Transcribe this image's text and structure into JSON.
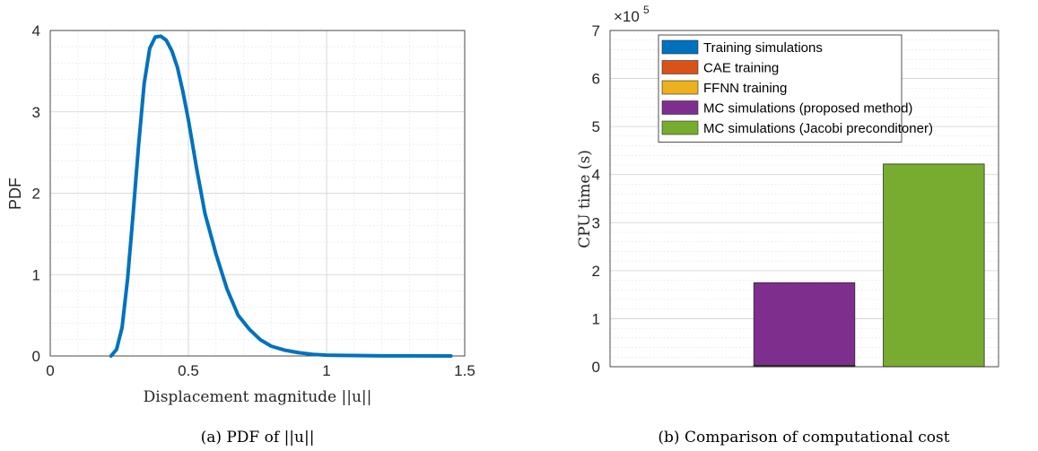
{
  "chart_data": [
    {
      "type": "line",
      "xlabel": "Displacement magnitude ||u||",
      "ylabel": "PDF",
      "caption": "(a) PDF of ||u||",
      "xlim": [
        0,
        1.5
      ],
      "ylim": [
        0,
        4
      ],
      "xticks": [
        0,
        0.5,
        1,
        1.5
      ],
      "xtick_labels": [
        "0",
        "0.5",
        "1",
        "1.5"
      ],
      "yticks": [
        0,
        1,
        2,
        3,
        4
      ],
      "ytick_labels": [
        "0",
        "1",
        "2",
        "3",
        "4"
      ],
      "grid": true,
      "color": "#0072BD",
      "x": [
        0.22,
        0.24,
        0.26,
        0.28,
        0.3,
        0.32,
        0.34,
        0.36,
        0.38,
        0.4,
        0.42,
        0.44,
        0.46,
        0.48,
        0.5,
        0.53,
        0.56,
        0.6,
        0.64,
        0.68,
        0.72,
        0.76,
        0.8,
        0.85,
        0.9,
        0.95,
        1.0,
        1.1,
        1.2,
        1.3,
        1.45
      ],
      "y": [
        0.0,
        0.08,
        0.35,
        0.95,
        1.75,
        2.6,
        3.35,
        3.78,
        3.92,
        3.93,
        3.88,
        3.75,
        3.55,
        3.25,
        2.9,
        2.3,
        1.75,
        1.25,
        0.82,
        0.5,
        0.33,
        0.2,
        0.12,
        0.07,
        0.04,
        0.02,
        0.01,
        0.005,
        0.002,
        0.001,
        0.0
      ]
    },
    {
      "type": "bar",
      "stacked": true,
      "ylabel": "CPU time (s)",
      "caption": "(b) Comparison of computational cost",
      "exponent_label": "×10",
      "exponent_power": "5",
      "ylim": [
        0,
        7
      ],
      "yticks": [
        0,
        1,
        2,
        3,
        4,
        5,
        6,
        7
      ],
      "ytick_labels": [
        "0",
        "1",
        "2",
        "3",
        "4",
        "5",
        "6",
        "7"
      ],
      "grid": true,
      "legend_position": "top-left",
      "categories": [
        "",
        "",
        ""
      ],
      "series": [
        {
          "name": "Training simulations",
          "color": "#0072BD",
          "values": [
            0,
            0.01,
            0
          ]
        },
        {
          "name": "CAE training",
          "color": "#D95319",
          "values": [
            0,
            0.015,
            0
          ]
        },
        {
          "name": "FFNN training",
          "color": "#EDB120",
          "values": [
            0,
            0.005,
            0
          ]
        },
        {
          "name": "MC simulations (proposed method)",
          "color": "#7E2F8E",
          "values": [
            0,
            1.72,
            0
          ]
        },
        {
          "name": "MC simulations (Jacobi preconditoner)",
          "color": "#77AC30",
          "values": [
            0,
            0,
            4.22
          ]
        }
      ]
    }
  ]
}
